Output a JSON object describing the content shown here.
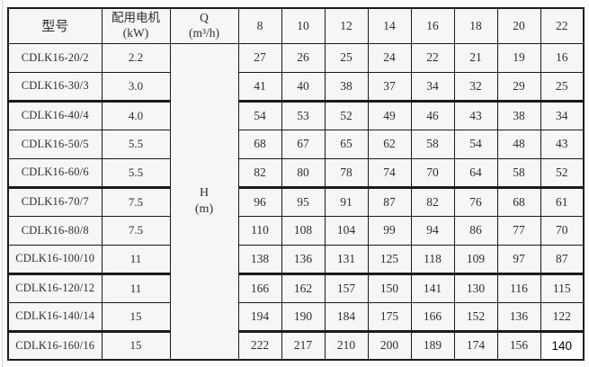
{
  "table": {
    "header": {
      "model": "型号",
      "motor": [
        "配用电机",
        "(kW)"
      ],
      "q": [
        "Q",
        "(m³/h)"
      ],
      "flow_columns": [
        "8",
        "10",
        "12",
        "14",
        "16",
        "18",
        "20",
        "22"
      ]
    },
    "h_cell": [
      "H",
      "(m)"
    ],
    "rows": [
      {
        "model": "CDLK16-20/2",
        "power": "2.2",
        "heads": [
          "27",
          "26",
          "25",
          "24",
          "22",
          "21",
          "19",
          "16"
        ]
      },
      {
        "model": "CDLK16-30/3",
        "power": "3.0",
        "heads": [
          "41",
          "40",
          "38",
          "37",
          "34",
          "32",
          "29",
          "25"
        ]
      },
      {
        "model": "CDLK16-40/4",
        "power": "4.0",
        "heads": [
          "54",
          "53",
          "52",
          "49",
          "46",
          "43",
          "38",
          "34"
        ]
      },
      {
        "model": "CDLK16-50/5",
        "power": "5.5",
        "heads": [
          "68",
          "67",
          "65",
          "62",
          "58",
          "54",
          "48",
          "43"
        ]
      },
      {
        "model": "CDLK16-60/6",
        "power": "5.5",
        "heads": [
          "82",
          "80",
          "78",
          "74",
          "70",
          "64",
          "58",
          "52"
        ]
      },
      {
        "model": "CDLK16-70/7",
        "power": "7.5",
        "heads": [
          "96",
          "95",
          "91",
          "87",
          "82",
          "76",
          "68",
          "61"
        ]
      },
      {
        "model": "CDLK16-80/8",
        "power": "7.5",
        "heads": [
          "110",
          "108",
          "104",
          "99",
          "94",
          "86",
          "77",
          "70"
        ]
      },
      {
        "model": "CDLK16-100/10",
        "power": "11",
        "heads": [
          "138",
          "136",
          "131",
          "125",
          "118",
          "109",
          "97",
          "87"
        ]
      },
      {
        "model": "CDLK16-120/12",
        "power": "11",
        "heads": [
          "166",
          "162",
          "157",
          "150",
          "141",
          "130",
          "116",
          "115"
        ]
      },
      {
        "model": "CDLK16-140/14",
        "power": "15",
        "heads": [
          "194",
          "190",
          "184",
          "175",
          "166",
          "152",
          "136",
          "122"
        ]
      },
      {
        "model": "CDLK16-160/16",
        "power": "15",
        "heads": [
          "222",
          "217",
          "210",
          "200",
          "189",
          "174",
          "156",
          "140"
        ]
      }
    ],
    "group_end_rows": [
      1,
      4,
      7,
      9
    ],
    "highlight_cell": {
      "row": 10,
      "col": 7
    }
  },
  "colors": {
    "border": "#1a1a1a",
    "cell_bg": "#f6f6f4",
    "page_bg": "#fbfbfa",
    "text": "#2f2f2f",
    "highlight_bg": "#ffffff",
    "highlight_text": "#000000"
  }
}
